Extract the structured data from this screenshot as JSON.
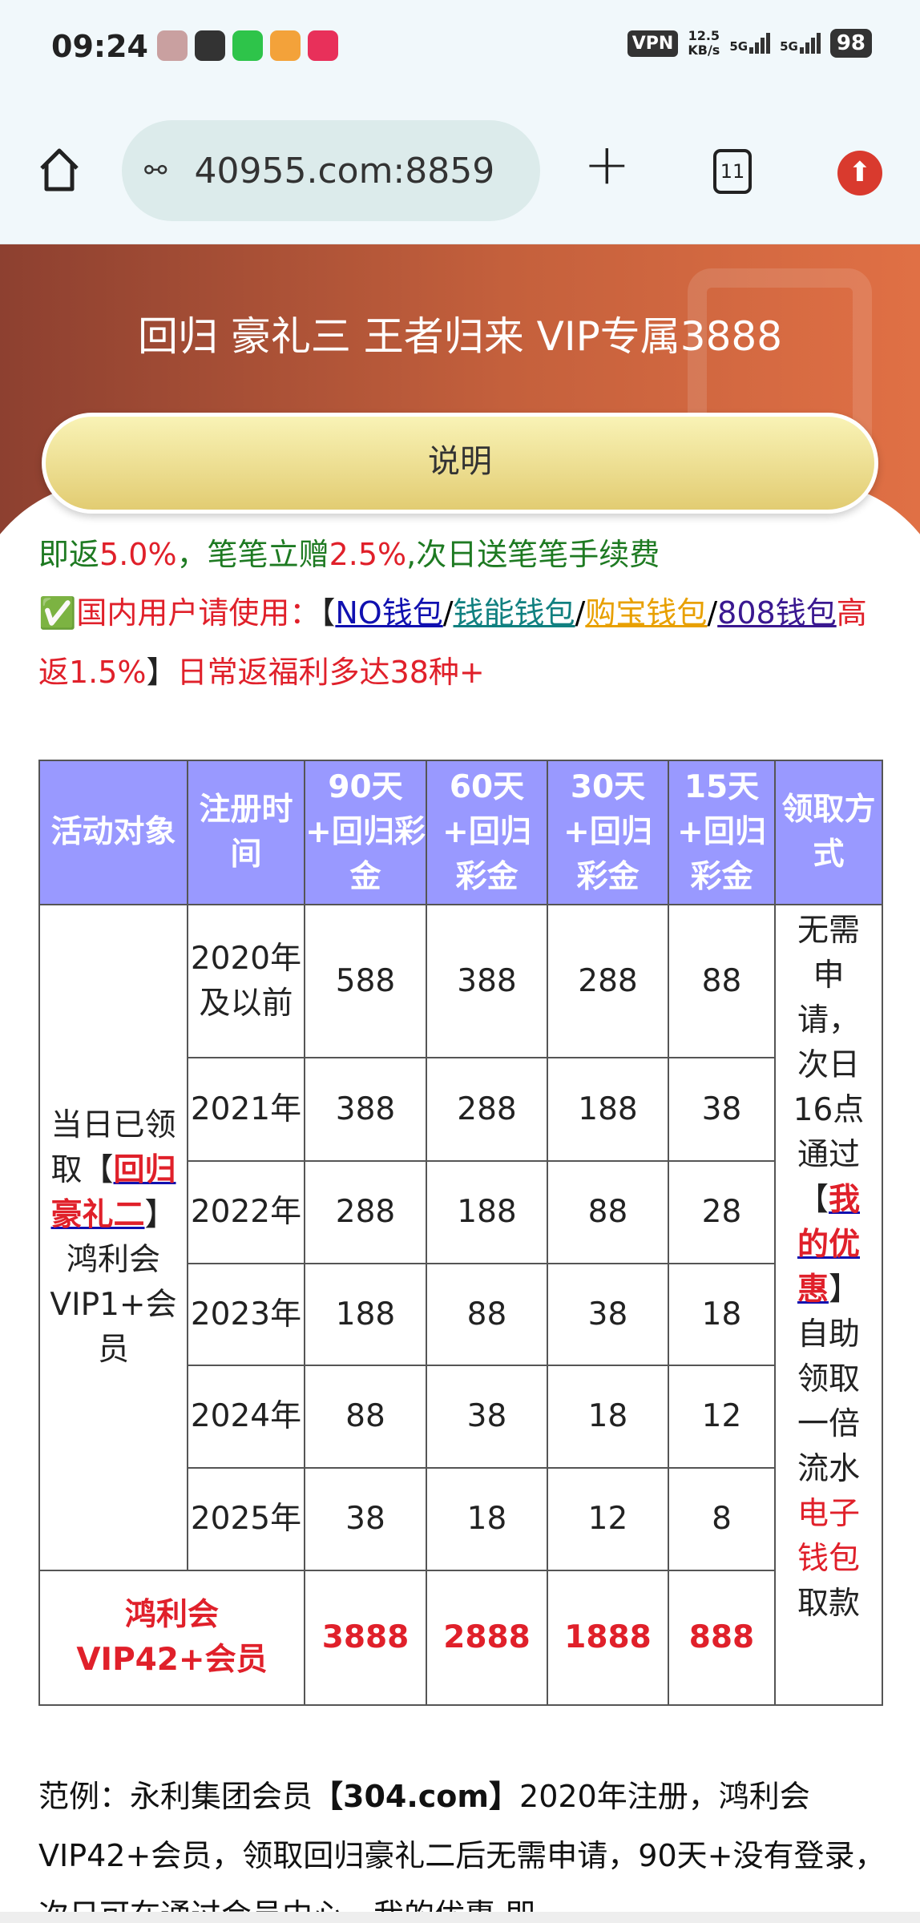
{
  "status_bar": {
    "time": "09:24",
    "vpn": "VPN",
    "speed_value": "12.5",
    "speed_unit": "KB/s",
    "signal1": "5G",
    "signal2": "5G",
    "battery": "98"
  },
  "browser": {
    "url": "40955.com:8859",
    "tab_count": "11"
  },
  "banner": {
    "title": "回归 豪礼三 王者归来 VIP专属3888",
    "button": "说明"
  },
  "intro": {
    "line1": [
      {
        "t": "即返",
        "c": "g"
      },
      {
        "t": "5.0%",
        "c": "r"
      },
      {
        "t": "，笔笔立赠",
        "c": "g"
      },
      {
        "t": "2.5%",
        "c": "r"
      },
      {
        "t": ",次日送笔笔手续费",
        "c": "g"
      }
    ],
    "check": "✅",
    "domestic": "国内用户请使用：",
    "bracket_open": "【",
    "links": [
      "NO钱包",
      "钱能钱包",
      "购宝钱包",
      "808钱包"
    ],
    "sep": "/",
    "high_return": "高返1.5%",
    "bracket_close": "】",
    "daily": "日常返福利多达38种+"
  },
  "table": {
    "headers": [
      "活动对象",
      "注册时间",
      "90天+回归彩金",
      "60天+回归彩金",
      "30天+回归彩金",
      "15天+回归彩金",
      "领取方式"
    ],
    "target_pre": "当日已领取",
    "target_link": "回归豪礼二",
    "target_post": "鸿利会VIP1+会员",
    "rows": [
      {
        "year": "2020年及以前",
        "v": [
          "588",
          "388",
          "288",
          "88"
        ]
      },
      {
        "year": "2021年",
        "v": [
          "388",
          "288",
          "188",
          "38"
        ]
      },
      {
        "year": "2022年",
        "v": [
          "288",
          "188",
          "88",
          "28"
        ]
      },
      {
        "year": "2023年",
        "v": [
          "188",
          "88",
          "38",
          "18"
        ]
      },
      {
        "year": "2024年",
        "v": [
          "88",
          "38",
          "18",
          "12"
        ]
      },
      {
        "year": "2025年",
        "v": [
          "38",
          "18",
          "12",
          "8"
        ]
      }
    ],
    "method_pre": "无需申请，次日16点通过",
    "method_link": "我的优惠",
    "method_mid": "自助领取一倍流水",
    "method_red": "电子钱包",
    "method_post": "取款",
    "vip42_label": "鸿利会VIP42+会员",
    "vip42_values": [
      "3888",
      "2888",
      "1888",
      "888"
    ]
  },
  "example": {
    "pre": "范例：永利集团会员",
    "bold": "【304.com】",
    "post": "2020年注册，鸿利会VIP42+会员，领取回归豪礼二后无需申请，90天+没有登录，次日可在通过会员中心，我的优惠 即"
  }
}
